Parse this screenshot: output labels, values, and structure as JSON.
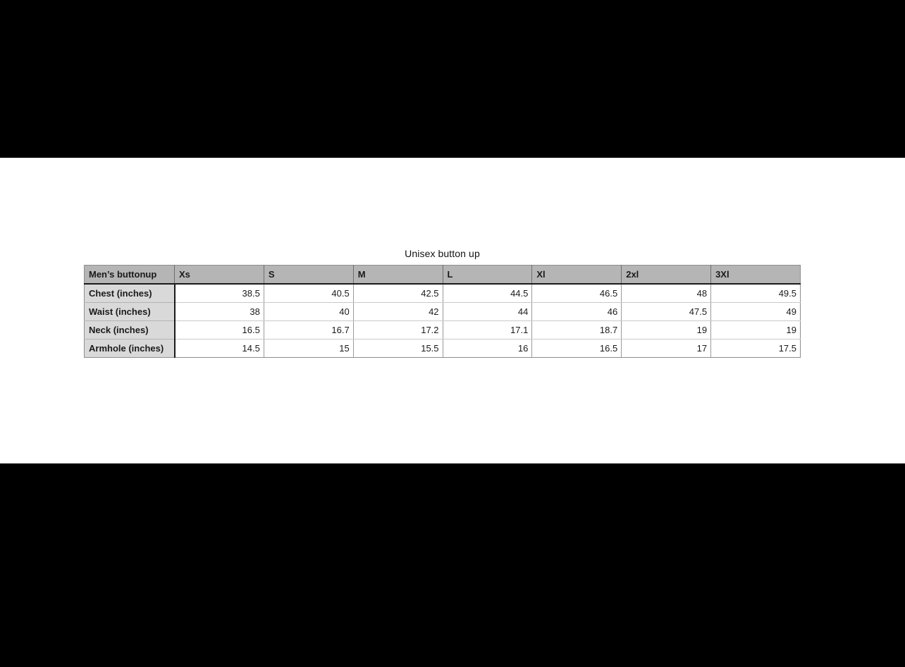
{
  "title": "Unisex button up",
  "table": {
    "corner_header": "Men’s buttonup",
    "size_headers": [
      "Xs",
      "S",
      "M",
      "L",
      "Xl",
      "2xl",
      "3Xl"
    ],
    "rows": [
      {
        "label": "Chest (inches)",
        "values": [
          "38.5",
          "40.5",
          "42.5",
          "44.5",
          "46.5",
          "48",
          "49.5"
        ]
      },
      {
        "label": "Waist (inches)",
        "values": [
          "38",
          "40",
          "42",
          "44",
          "46",
          "47.5",
          "49"
        ]
      },
      {
        "label": "Neck (inches)",
        "values": [
          "16.5",
          "16.7",
          "17.2",
          "17.1",
          "18.7",
          "19",
          "19"
        ]
      },
      {
        "label": "Armhole (inches)",
        "values": [
          "14.5",
          "15",
          "15.5",
          "16",
          "16.5",
          "17",
          "17.5"
        ]
      }
    ]
  },
  "colors": {
    "page_background": "#000000",
    "content_background": "#ffffff",
    "header_bg": "#b5b5b5",
    "label_bg": "#d9d9d9",
    "dark_border": "#1a1a1a"
  },
  "chart_data": {
    "type": "table",
    "title": "Unisex button up",
    "columns": [
      "Men’s buttonup",
      "Xs",
      "S",
      "M",
      "L",
      "Xl",
      "2xl",
      "3Xl"
    ],
    "rows": [
      [
        "Chest (inches)",
        38.5,
        40.5,
        42.5,
        44.5,
        46.5,
        48,
        49.5
      ],
      [
        "Waist (inches)",
        38,
        40,
        42,
        44,
        46,
        47.5,
        49
      ],
      [
        "Neck (inches)",
        16.5,
        16.7,
        17.2,
        17.1,
        18.7,
        19,
        19
      ],
      [
        "Armhole (inches)",
        14.5,
        15,
        15.5,
        16,
        16.5,
        17,
        17.5
      ]
    ],
    "layout": {
      "letterboxed": true,
      "title_position": "top-center",
      "first_column_is_row_labels": true
    }
  }
}
